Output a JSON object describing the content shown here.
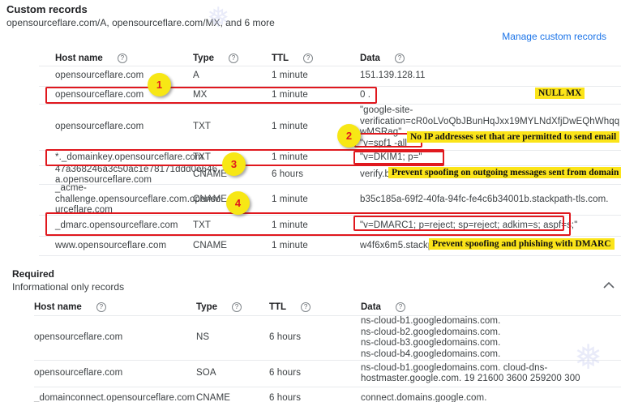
{
  "custom_section": {
    "title": "Custom records",
    "subtitle": "opensourceflare.com/A, opensourceflare.com/MX, and 6 more",
    "manage_link": "Manage custom records"
  },
  "required_section": {
    "title": "Required",
    "subtitle": "Informational only records"
  },
  "columns": [
    "Host name",
    "Type",
    "TTL",
    "Data"
  ],
  "tables": {
    "custom": {
      "rows": [
        {
          "host": [
            "opensourceflare.com"
          ],
          "type": "A",
          "ttl": "1 minute",
          "data": [
            "151.139.128.11"
          ]
        },
        {
          "host": [
            "opensourceflare.com"
          ],
          "type": "MX",
          "ttl": "1 minute",
          "data": [
            "0 ."
          ]
        },
        {
          "host": [
            "opensourceflare.com"
          ],
          "type": "TXT",
          "ttl": "1 minute",
          "data": [
            "\"google-site-",
            "verification=cR0oLVoQbJBunHqJxx19MYLNdXfjDwEQhWhqq",
            "wMSRag\"",
            "\"v=spf1 -all\""
          ]
        },
        {
          "host": [
            "*._domainkey.opensourceflare.com"
          ],
          "type": "TXT",
          "ttl": "1 minute",
          "data": [
            "\"v=DKIM1; p=\""
          ]
        },
        {
          "host": [
            "47a368246a3c50ac1e78171ddd0e646",
            "a.opensourceflare.com"
          ],
          "type": "CNAME",
          "ttl": "6 hours",
          "data": [
            "verify.b"
          ]
        },
        {
          "host": [
            "_acme-",
            "challenge.opensourceflare.com.openso",
            "urceflare.com"
          ],
          "type": "CNAME",
          "ttl": "1 minute",
          "data": [
            "b35c185a-69f2-40fa-94fc-fe4c6b34001b.stackpath-tls.com."
          ]
        },
        {
          "host": [
            "_dmarc.opensourceflare.com"
          ],
          "type": "TXT",
          "ttl": "1 minute",
          "data": [
            "\"v=DMARC1; p=reject; sp=reject; adkim=s; aspf=s;\""
          ]
        },
        {
          "host": [
            "www.opensourceflare.com"
          ],
          "type": "CNAME",
          "ttl": "1 minute",
          "data": [
            "w4f6x6m5.stackp"
          ]
        }
      ]
    },
    "required": {
      "rows": [
        {
          "host": [
            "opensourceflare.com"
          ],
          "type": "NS",
          "ttl": "6 hours",
          "data": [
            "ns-cloud-b1.googledomains.com.",
            "ns-cloud-b2.googledomains.com.",
            "ns-cloud-b3.googledomains.com.",
            "ns-cloud-b4.googledomains.com."
          ]
        },
        {
          "host": [
            "opensourceflare.com"
          ],
          "type": "SOA",
          "ttl": "6 hours",
          "data": [
            "ns-cloud-b1.googledomains.com. cloud-dns-",
            "hostmaster.google.com. 19 21600 3600 259200 300"
          ]
        },
        {
          "host": [
            "_domainconnect.opensourceflare.com"
          ],
          "type": "CNAME",
          "ttl": "6 hours",
          "data": [
            "connect.domains.google.com."
          ]
        }
      ]
    }
  },
  "annotations": {
    "circles": [
      {
        "n": "1"
      },
      {
        "n": "2"
      },
      {
        "n": "3"
      },
      {
        "n": "4"
      }
    ],
    "labels": [
      {
        "text": "NULL MX"
      },
      {
        "text": "No IP addresses set that are permitted to send email"
      },
      {
        "text": "Prevent spoofing on outgoing messages sent from domain"
      },
      {
        "text": "Prevent spoofing and phishing with DMARC"
      }
    ]
  },
  "icons": {
    "help": "?"
  },
  "colors": {
    "annotation_red": "#e0181e",
    "annotation_yellow": "#fbe419",
    "link_blue": "#1a73e8",
    "text_dark": "#202124",
    "text_body": "#3c4043",
    "divider": "#e8eaed"
  }
}
